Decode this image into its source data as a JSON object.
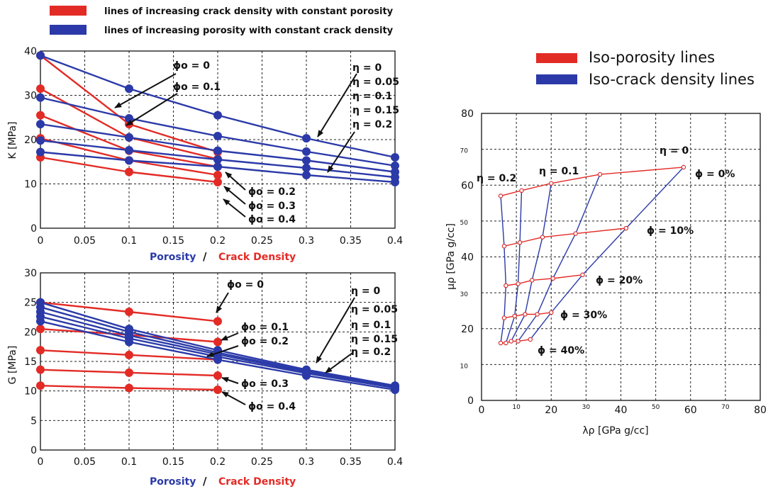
{
  "colors": {
    "red": "#e32b26",
    "blue": "#2b3aa8",
    "grid": "#222222"
  },
  "legend_left": {
    "red_label": "lines of increasing crack density with constant porosity",
    "blue_label": "lines of increasing porosity with constant crack density"
  },
  "legend_right": {
    "red_label": "Iso-porosity lines",
    "blue_label": "Iso-crack density lines"
  },
  "xlabel": {
    "porosity": "Porosity",
    "sep": "/",
    "crack": "Crack Density"
  },
  "chart_data": [
    {
      "id": "K",
      "type": "line",
      "ylabel": "K [MPa]",
      "xlim": [
        0,
        0.4
      ],
      "ylim": [
        0,
        40
      ],
      "xticks": [
        0,
        0.05,
        0.1,
        0.15,
        0.2,
        0.25,
        0.3,
        0.35,
        0.4
      ],
      "xtick_labels": [
        "0",
        "0.05",
        "0.1",
        "0.15",
        "0.2",
        "0.25",
        "0.3",
        "0.35",
        "0.4"
      ],
      "yticks": [
        0,
        10,
        20,
        30,
        40
      ],
      "ytick_labels": [
        "0",
        "10",
        "20",
        "30",
        "40"
      ],
      "red_series": [
        {
          "name": "φo = 0",
          "x": [
            0,
            0.1,
            0.2
          ],
          "y": [
            39,
            23.5,
            17.2
          ]
        },
        {
          "name": "φo = 0.1",
          "x": [
            0,
            0.1,
            0.2
          ],
          "y": [
            31.5,
            20.5,
            15.6
          ]
        },
        {
          "name": "φo = 0.2",
          "x": [
            0,
            0.1,
            0.2
          ],
          "y": [
            25.5,
            17.5,
            13.9
          ]
        },
        {
          "name": "φo = 0.3",
          "x": [
            0,
            0.1,
            0.2
          ],
          "y": [
            20.3,
            15.3,
            12.0
          ]
        },
        {
          "name": "φo = 0.4",
          "x": [
            0,
            0.1,
            0.2
          ],
          "y": [
            16.0,
            12.7,
            10.4
          ]
        }
      ],
      "blue_series": [
        {
          "name": "η = 0",
          "x": [
            0,
            0.1,
            0.2,
            0.3,
            0.4
          ],
          "y": [
            39,
            31.5,
            25.5,
            20.3,
            16.0
          ]
        },
        {
          "name": "η = 0.05",
          "x": [
            0,
            0.1,
            0.2,
            0.3,
            0.4
          ],
          "y": [
            29.5,
            24.8,
            20.8,
            17.3,
            14.1
          ]
        },
        {
          "name": "η = 0.1",
          "x": [
            0,
            0.1,
            0.2,
            0.3,
            0.4
          ],
          "y": [
            23.5,
            20.5,
            17.5,
            15.3,
            12.7
          ]
        },
        {
          "name": "η = 0.15",
          "x": [
            0,
            0.1,
            0.2,
            0.3,
            0.4
          ],
          "y": [
            19.8,
            17.6,
            15.5,
            13.6,
            11.5
          ]
        },
        {
          "name": "η = 0.2",
          "x": [
            0,
            0.1,
            0.2,
            0.3,
            0.4
          ],
          "y": [
            17.2,
            15.3,
            13.9,
            12.0,
            10.4
          ]
        }
      ],
      "annotations": {
        "phi0": "ϕo = 0",
        "phi1": "ϕo = 0.1",
        "phi2": "ϕo = 0.2",
        "phi3": "ϕo = 0.3",
        "phi4": "ϕo = 0.4",
        "eta0": "η = 0",
        "eta05": "η = 0.05",
        "eta1": "η = 0.1",
        "eta15": "η = 0.15",
        "eta2": "η = 0.2"
      }
    },
    {
      "id": "G",
      "type": "line",
      "ylabel": "G [MPa]",
      "xlim": [
        0,
        0.4
      ],
      "ylim": [
        0,
        30
      ],
      "xticks": [
        0,
        0.05,
        0.1,
        0.15,
        0.2,
        0.25,
        0.3,
        0.35,
        0.4
      ],
      "xtick_labels": [
        "0",
        "0.05",
        "0.1",
        "0.15",
        "0.2",
        "0.25",
        "0.3",
        "0.35",
        "0.4"
      ],
      "yticks": [
        0,
        5,
        10,
        15,
        20,
        25,
        30
      ],
      "ytick_labels": [
        "0",
        "5",
        "10",
        "15",
        "20",
        "25",
        "30"
      ],
      "red_series": [
        {
          "name": "φo = 0",
          "x": [
            0,
            0.1,
            0.2
          ],
          "y": [
            25.0,
            23.4,
            21.8
          ]
        },
        {
          "name": "φo = 0.1",
          "x": [
            0,
            0.1,
            0.2
          ],
          "y": [
            20.5,
            19.5,
            18.3
          ]
        },
        {
          "name": "φo = 0.2",
          "x": [
            0,
            0.1,
            0.2
          ],
          "y": [
            16.9,
            16.1,
            15.3
          ]
        },
        {
          "name": "φo = 0.3",
          "x": [
            0,
            0.1,
            0.2
          ],
          "y": [
            13.6,
            13.1,
            12.6
          ]
        },
        {
          "name": "φo = 0.4",
          "x": [
            0,
            0.1,
            0.2
          ],
          "y": [
            10.9,
            10.5,
            10.2
          ]
        }
      ],
      "blue_series": [
        {
          "name": "η = 0",
          "x": [
            0,
            0.1,
            0.2,
            0.3,
            0.4
          ],
          "y": [
            25.0,
            20.5,
            16.9,
            13.6,
            10.9
          ]
        },
        {
          "name": "η = 0.05",
          "x": [
            0,
            0.1,
            0.2,
            0.3,
            0.4
          ],
          "y": [
            24.2,
            20.0,
            16.5,
            13.4,
            10.8
          ]
        },
        {
          "name": "η = 0.1",
          "x": [
            0,
            0.1,
            0.2,
            0.3,
            0.4
          ],
          "y": [
            23.4,
            19.4,
            16.2,
            13.2,
            10.6
          ]
        },
        {
          "name": "η = 0.15",
          "x": [
            0,
            0.1,
            0.2,
            0.3,
            0.4
          ],
          "y": [
            22.6,
            18.9,
            15.8,
            13.0,
            10.5
          ]
        },
        {
          "name": "η = 0.2",
          "x": [
            0,
            0.1,
            0.2,
            0.3,
            0.4
          ],
          "y": [
            21.8,
            18.3,
            15.3,
            12.6,
            10.2
          ]
        }
      ],
      "annotations": {
        "phi0": "ϕo = 0",
        "phi1": "ϕo = 0.1",
        "phi2": "ϕo = 0.2",
        "phi3": "ϕo = 0.3",
        "phi4": "ϕo = 0.4",
        "eta0": "η = 0",
        "eta05": "η = 0.05",
        "eta1": "η = 0.1",
        "eta15": "η = 0.15",
        "eta2": "η = 0.2"
      }
    },
    {
      "id": "LMR",
      "type": "line",
      "xlabel": "λρ [GPa g/cc]",
      "ylabel": "μρ [GPa  g/cc]",
      "xlim": [
        0,
        80
      ],
      "ylim": [
        0,
        80
      ],
      "xticks": [
        0,
        10,
        20,
        30,
        40,
        50,
        60,
        70,
        80
      ],
      "xtick_labels": [
        "0",
        "10",
        "20",
        "30",
        "40",
        "50",
        "60",
        "70",
        "80"
      ],
      "xtick_small": [
        false,
        true,
        false,
        true,
        false,
        true,
        false,
        true,
        false
      ],
      "yticks": [
        0,
        10,
        20,
        30,
        40,
        50,
        60,
        70,
        80
      ],
      "ytick_labels": [
        "0",
        "10",
        "20",
        "30",
        "40",
        "50",
        "60",
        "70",
        "80"
      ],
      "ytick_small": [
        false,
        true,
        false,
        true,
        false,
        true,
        false,
        true,
        false
      ],
      "iso_porosity": [
        {
          "name": "ϕ = 0%",
          "x": [
            5.5,
            11.5,
            20,
            34,
            58
          ],
          "y": [
            57,
            58.5,
            60.5,
            63,
            65
          ]
        },
        {
          "name": "ϕ = 10%",
          "x": [
            6.5,
            11,
            17.5,
            27,
            41.5
          ],
          "y": [
            43,
            44,
            45.5,
            46.5,
            48
          ]
        },
        {
          "name": "ϕ = 20%",
          "x": [
            7,
            10.5,
            14.5,
            20.5,
            29
          ],
          "y": [
            32,
            32.5,
            33.5,
            34,
            35
          ]
        },
        {
          "name": "ϕ = 30%",
          "x": [
            6.5,
            9.5,
            12.5,
            16,
            20
          ],
          "y": [
            23,
            23.5,
            24,
            24,
            24.5
          ]
        },
        {
          "name": "ϕ = 40%",
          "x": [
            5.5,
            7,
            8.5,
            10.5,
            14
          ],
          "y": [
            16,
            16,
            16.5,
            16.5,
            17
          ]
        }
      ],
      "iso_crack": [
        {
          "name": "η = 0",
          "x": [
            58,
            41.5,
            29,
            20,
            14
          ],
          "y": [
            65,
            48,
            35,
            24.5,
            17
          ]
        },
        {
          "name": "η = 0.05",
          "x": [
            34,
            27,
            20.5,
            16,
            10.5
          ],
          "y": [
            63,
            46.5,
            34,
            24,
            16.5
          ]
        },
        {
          "name": "η = 0.1",
          "x": [
            20,
            17.5,
            14.5,
            12.5,
            8.5
          ],
          "y": [
            60.5,
            45.5,
            33.5,
            24,
            16.5
          ]
        },
        {
          "name": "η = 0.15",
          "x": [
            11.5,
            11,
            10.5,
            9.5,
            7
          ],
          "y": [
            58.5,
            44,
            32.5,
            23.5,
            16
          ]
        },
        {
          "name": "η = 0.2",
          "x": [
            5.5,
            6.5,
            7,
            6.5,
            5.5
          ],
          "y": [
            57,
            43,
            32,
            23,
            16
          ]
        }
      ],
      "annotations": {
        "eta0": "η = 0",
        "eta1": "η = 0.1",
        "eta2": "η = 0.2",
        "phi0": "ϕ = 0%",
        "phi10": "ϕ = 10%",
        "phi20": "ϕ = 20%",
        "phi30": "ϕ = 30%",
        "phi40": "ϕ = 40%"
      }
    }
  ]
}
